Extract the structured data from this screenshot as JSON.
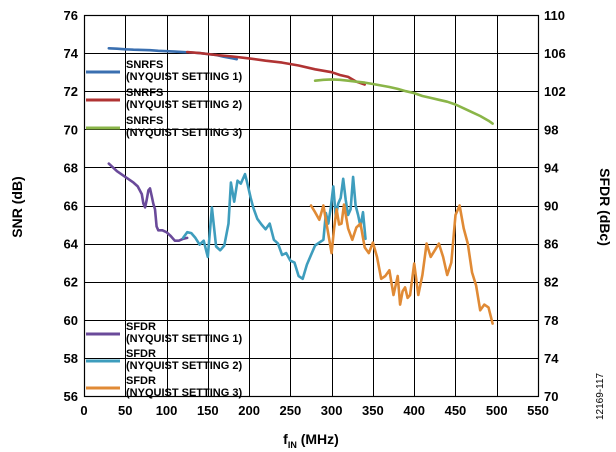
{
  "figure_id": "12169-117",
  "chart_data": {
    "type": "line",
    "xlabel": "f",
    "xlabel_sub": "IN",
    "xlabel_unit": " (MHz)",
    "ylabel_left": "SNR (dB)",
    "ylabel_right": "SFDR (dBc)",
    "xlim": [
      0,
      550
    ],
    "ylim_left": [
      56,
      76
    ],
    "ylim_right": [
      70,
      110
    ],
    "x_ticks": [
      0,
      50,
      100,
      150,
      200,
      250,
      300,
      350,
      400,
      450,
      500,
      550
    ],
    "y_left_ticks": [
      56,
      58,
      60,
      62,
      64,
      66,
      68,
      70,
      72,
      74,
      76
    ],
    "y_right_ticks": [
      70,
      74,
      78,
      82,
      86,
      90,
      94,
      98,
      102,
      106,
      110
    ],
    "grid": true,
    "legends": [
      {
        "placement": "top-left",
        "entries": [
          {
            "series": 0,
            "line1": "SNRFS",
            "line2": "(NYQUIST SETTING 1)"
          },
          {
            "series": 1,
            "line1": "SNRFS",
            "line2": "(NYQUIST SETTING 2)"
          },
          {
            "series": 2,
            "line1": "SNRFS",
            "line2": "(NYQUIST SETTING 3)"
          }
        ]
      },
      {
        "placement": "bottom-left",
        "entries": [
          {
            "series": 3,
            "line1": "SFDR",
            "line2": "(NYQUIST SETTING 1)"
          },
          {
            "series": 4,
            "line1": "SFDR",
            "line2": "(NYQUIST SETTING 2)"
          },
          {
            "series": 5,
            "line1": "SFDR",
            "line2": "(NYQUIST SETTING 3)"
          }
        ]
      }
    ],
    "series": [
      {
        "name": "SNRFS (NYQUIST SETTING 1)",
        "axis": "left",
        "color": "#3a6fb0",
        "x": [
          30,
          40,
          50,
          60,
          70,
          80,
          90,
          100,
          110,
          120,
          130,
          140,
          150,
          160,
          170,
          180,
          185
        ],
        "y": [
          74.25,
          74.23,
          74.2,
          74.18,
          74.17,
          74.15,
          74.12,
          74.1,
          74.08,
          74.05,
          74.03,
          74.0,
          73.95,
          73.9,
          73.8,
          73.72,
          73.68
        ]
      },
      {
        "name": "SNRFS (NYQUIST SETTING 2)",
        "axis": "left",
        "color": "#b03333",
        "x": [
          125,
          140,
          160,
          180,
          200,
          220,
          240,
          260,
          280,
          300,
          310,
          320,
          330,
          340
        ],
        "y": [
          74.05,
          74.0,
          73.9,
          73.82,
          73.72,
          73.6,
          73.5,
          73.35,
          73.15,
          73.0,
          72.85,
          72.75,
          72.5,
          72.35
        ]
      },
      {
        "name": "SNRFS (NYQUIST SETTING 3)",
        "axis": "left",
        "color": "#8ab548",
        "x": [
          280,
          290,
          300,
          310,
          320,
          330,
          340,
          350,
          360,
          370,
          380,
          390,
          400,
          410,
          420,
          430,
          440,
          450,
          460,
          470,
          480,
          490,
          495
        ],
        "y": [
          72.55,
          72.6,
          72.62,
          72.6,
          72.55,
          72.5,
          72.45,
          72.38,
          72.3,
          72.22,
          72.12,
          72.0,
          71.9,
          71.75,
          71.65,
          71.55,
          71.45,
          71.3,
          71.1,
          70.9,
          70.7,
          70.45,
          70.3
        ]
      },
      {
        "name": "SFDR (NYQUIST SETTING 1)",
        "axis": "right",
        "color": "#6a4a9a",
        "x": [
          30,
          40,
          50,
          60,
          65,
          70,
          72,
          74,
          76,
          78,
          80,
          82,
          84,
          86,
          88,
          90,
          95,
          100,
          105,
          110,
          115,
          120,
          125
        ],
        "y": [
          94.4,
          93.6,
          93.0,
          92.4,
          92.0,
          91.2,
          90.2,
          89.8,
          90.6,
          91.6,
          91.8,
          91.0,
          90.2,
          89.6,
          87.8,
          87.4,
          87.4,
          87.2,
          86.8,
          86.3,
          86.3,
          86.5,
          86.6
        ]
      },
      {
        "name": "SFDR (NYQUIST SETTING 2)",
        "axis": "right",
        "color": "#3e9dbd",
        "x": [
          120,
          125,
          130,
          135,
          140,
          145,
          150,
          155,
          160,
          165,
          170,
          175,
          178,
          182,
          186,
          190,
          195,
          198,
          202,
          205,
          210,
          215,
          220,
          225,
          230,
          235,
          240,
          245,
          250,
          255,
          260,
          265,
          270,
          275,
          280,
          285,
          290,
          293,
          296,
          299,
          302,
          305,
          308,
          311,
          314,
          317,
          320,
          323,
          326,
          329,
          332,
          335,
          338,
          341
        ],
        "y": [
          86.6,
          87.2,
          87.1,
          86.6,
          85.9,
          86.3,
          84.6,
          89.8,
          85.7,
          85.3,
          85.8,
          88.1,
          92.4,
          90.4,
          92.6,
          92.3,
          93.3,
          92.3,
          90.8,
          89.8,
          88.6,
          88.0,
          87.5,
          88.1,
          86.4,
          86.0,
          84.8,
          85.0,
          84.2,
          84.0,
          82.6,
          82.3,
          83.8,
          84.8,
          85.8,
          86.1,
          86.4,
          89.2,
          88.1,
          89.8,
          92.0,
          88.8,
          90.2,
          90.8,
          92.8,
          90.6,
          89.0,
          89.6,
          93.0,
          90.0,
          89.0,
          87.8,
          89.3,
          86.5
        ]
      },
      {
        "name": "SFDR (NYQUIST SETTING 3)",
        "axis": "right",
        "color": "#e08a35",
        "x": [
          275,
          280,
          285,
          290,
          295,
          300,
          303,
          306,
          309,
          312,
          315,
          320,
          325,
          330,
          335,
          340,
          345,
          350,
          355,
          360,
          365,
          370,
          375,
          380,
          383,
          386,
          389,
          392,
          395,
          400,
          405,
          410,
          415,
          420,
          425,
          430,
          435,
          440,
          445,
          450,
          455,
          460,
          465,
          470,
          475,
          480,
          485,
          490,
          495
        ],
        "y": [
          90.0,
          89.3,
          88.5,
          90.0,
          87.5,
          85.0,
          87.6,
          89.6,
          88.0,
          88.1,
          90.1,
          87.6,
          86.4,
          87.7,
          88.1,
          85.6,
          85.0,
          86.1,
          84.6,
          82.3,
          82.6,
          83.2,
          80.6,
          82.6,
          79.6,
          81.0,
          81.4,
          80.3,
          80.6,
          83.9,
          80.6,
          82.7,
          86.0,
          84.6,
          85.3,
          86.0,
          84.6,
          82.7,
          84.0,
          89.0,
          90.0,
          87.6,
          86.0,
          83.0,
          81.6,
          79.0,
          79.6,
          79.3,
          77.6
        ]
      }
    ]
  }
}
